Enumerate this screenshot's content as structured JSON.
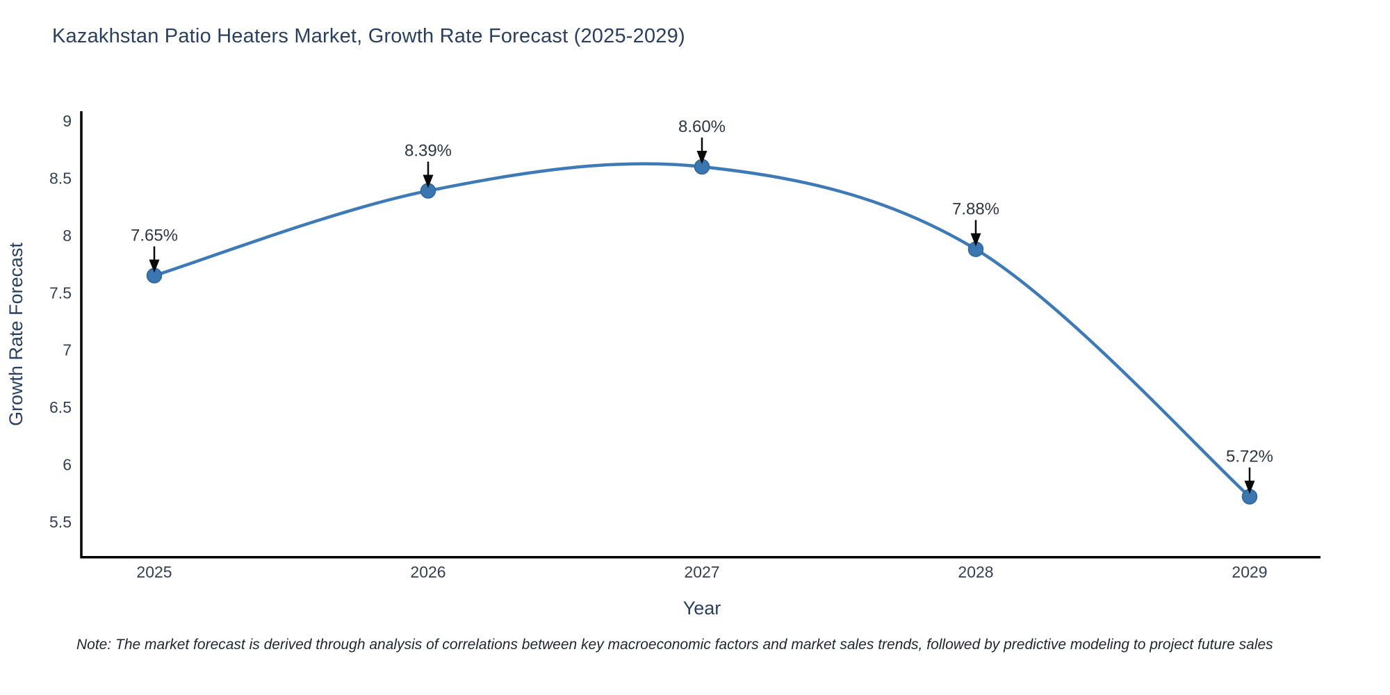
{
  "chart": {
    "note": "Note: The market forecast is derived through analysis of correlations between key macroeconomic factors and market sales trends, followed by predictive modeling to project future sales",
    "colors": {
      "line": "#3d7ab6",
      "marker_fill": "#3a76b0",
      "marker_stroke": "#30659c",
      "axis": "#000000",
      "title_text": "#2a3f5f",
      "tick_text": "#333f52",
      "annotation_text": "#2e3644",
      "arrow": "#0a0a0a"
    }
  },
  "chart_data": {
    "type": "line",
    "line_shape": "spline",
    "title": "Kazakhstan Patio Heaters Market, Growth Rate Forecast (2025-2029)",
    "xlabel": "Year",
    "ylabel": "Growth Rate Forecast",
    "x": [
      2025,
      2026,
      2027,
      2028,
      2029
    ],
    "values": [
      7.65,
      8.39,
      8.6,
      7.88,
      5.72
    ],
    "labels": [
      "7.65%",
      "8.39%",
      "8.60%",
      "7.88%",
      "5.72%"
    ],
    "yticks": [
      9,
      8.5,
      8,
      7.5,
      7,
      6.5,
      6,
      5.5
    ],
    "ylim": [
      5.19,
      9.085
    ],
    "grid": false,
    "legend_position": "none"
  }
}
